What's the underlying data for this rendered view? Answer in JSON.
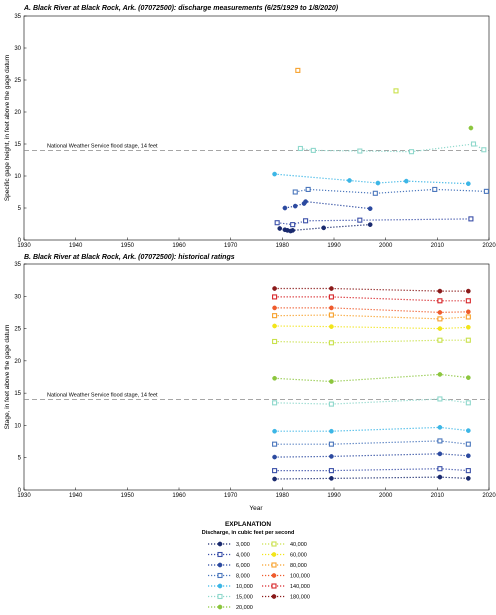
{
  "colors": {
    "3000": "#1a2a6e",
    "4000": "#3a4fa8",
    "6000": "#2c4aa0",
    "8000": "#4a76bc",
    "10000": "#3cb6e6",
    "15000": "#8fd8cc",
    "20000": "#8cc63e",
    "40000": "#c9e14b",
    "60000": "#f2e51a",
    "80000": "#f7a12c",
    "100000": "#ef5b2c",
    "140000": "#d7262a",
    "180000": "#8a1a1a"
  },
  "chart_data": [
    {
      "type": "scatter",
      "title": "A. Black River at Black Rock, Ark. (07072500): discharge measurements (6/25/1929 to 1/8/2020)",
      "xlabel": "",
      "ylabel": "Specific gage height, in feet above the gage datum",
      "xlim": [
        1930,
        2020
      ],
      "ylim": [
        0,
        35
      ],
      "xticks": [
        "1930",
        "1940",
        "1950",
        "1960",
        "1970",
        "1980",
        "1990",
        "2000",
        "2010",
        "2020"
      ],
      "yticks": [
        "0",
        "5",
        "10",
        "15",
        "20",
        "25",
        "30",
        "35"
      ],
      "reference_line": {
        "value": 14,
        "label": "National Weather Service flood stage, 14 feet"
      },
      "series": [
        {
          "key": "3000",
          "marker": "circle",
          "points": [
            [
              1979.5,
              1.8
            ],
            [
              1980.5,
              1.6
            ],
            [
              1981,
              1.5
            ],
            [
              1981.6,
              1.4
            ],
            [
              1982,
              1.5
            ],
            [
              1988,
              1.9
            ],
            [
              1997,
              2.4
            ]
          ]
        },
        {
          "key": "4000",
          "marker": "square",
          "points": [
            [
              1979,
              2.7
            ],
            [
              1982,
              2.4
            ],
            [
              1984.5,
              3.0
            ],
            [
              1995,
              3.1
            ],
            [
              2016.5,
              3.3
            ]
          ]
        },
        {
          "key": "6000",
          "marker": "circle",
          "points": [
            [
              1980.5,
              5.0
            ],
            [
              1982.5,
              5.3
            ],
            [
              1984.2,
              5.7
            ],
            [
              1984.5,
              6.0
            ],
            [
              1997,
              4.9
            ]
          ]
        },
        {
          "key": "8000",
          "marker": "square",
          "points": [
            [
              1982.5,
              7.5
            ],
            [
              1985,
              7.9
            ],
            [
              1998,
              7.3
            ],
            [
              2009.5,
              7.9
            ],
            [
              2019.5,
              7.6
            ]
          ]
        },
        {
          "key": "10000",
          "marker": "circle",
          "points": [
            [
              1978.5,
              10.3
            ],
            [
              1993,
              9.3
            ],
            [
              1998.5,
              8.9
            ],
            [
              2004,
              9.2
            ],
            [
              2016,
              8.8
            ]
          ]
        },
        {
          "key": "15000",
          "marker": "square",
          "points": [
            [
              1983.5,
              14.3
            ],
            [
              1986,
              14.0
            ],
            [
              1995,
              13.9
            ],
            [
              2005,
              13.8
            ],
            [
              2017,
              15.0
            ],
            [
              2019,
              14.1
            ]
          ]
        },
        {
          "key": "20000",
          "marker": "circle",
          "points": [
            [
              2016.5,
              17.5
            ]
          ]
        },
        {
          "key": "40000",
          "marker": "square",
          "points": [
            [
              2002,
              23.3
            ]
          ]
        },
        {
          "key": "80000",
          "marker": "square",
          "points": [
            [
              1983,
              26.5
            ]
          ]
        }
      ]
    },
    {
      "type": "line",
      "title": "B. Black River at Black Rock, Ark. (07072500): historical ratings",
      "xlabel": "Year",
      "ylabel": "Stage, in feet above the gage datum",
      "xlim": [
        1930,
        2020
      ],
      "ylim": [
        0,
        35
      ],
      "xticks": [
        "1930",
        "1940",
        "1950",
        "1960",
        "1970",
        "1980",
        "1990",
        "2000",
        "2010",
        "2020"
      ],
      "yticks": [
        "0",
        "5",
        "10",
        "15",
        "20",
        "25",
        "30",
        "35"
      ],
      "reference_line": {
        "value": 14,
        "label": "National Weather Service flood stage, 14 feet"
      },
      "x": [
        1978.5,
        1989.5,
        2010.5,
        2016
      ],
      "series": [
        {
          "key": "3000",
          "marker": "circle",
          "values": [
            1.7,
            1.8,
            2.0,
            1.8
          ]
        },
        {
          "key": "4000",
          "marker": "square",
          "values": [
            3.0,
            3.0,
            3.3,
            3.0
          ]
        },
        {
          "key": "6000",
          "marker": "circle",
          "values": [
            5.1,
            5.2,
            5.6,
            5.3
          ]
        },
        {
          "key": "8000",
          "marker": "square",
          "values": [
            7.1,
            7.1,
            7.6,
            7.1
          ]
        },
        {
          "key": "10000",
          "marker": "circle",
          "values": [
            9.1,
            9.1,
            9.7,
            9.2
          ]
        },
        {
          "key": "15000",
          "marker": "square",
          "values": [
            13.5,
            13.3,
            14.1,
            13.5
          ]
        },
        {
          "key": "20000",
          "marker": "circle",
          "values": [
            17.3,
            16.8,
            17.9,
            17.4
          ]
        },
        {
          "key": "40000",
          "marker": "square",
          "values": [
            23.0,
            22.8,
            23.2,
            23.2
          ]
        },
        {
          "key": "60000",
          "marker": "circle",
          "values": [
            25.4,
            25.3,
            25.0,
            25.2
          ]
        },
        {
          "key": "80000",
          "marker": "square",
          "values": [
            27.0,
            27.1,
            26.5,
            26.8
          ]
        },
        {
          "key": "100000",
          "marker": "circle",
          "values": [
            28.2,
            28.2,
            27.5,
            27.6
          ]
        },
        {
          "key": "140000",
          "marker": "square",
          "values": [
            29.9,
            29.9,
            29.3,
            29.3
          ]
        },
        {
          "key": "180000",
          "marker": "circle",
          "values": [
            31.2,
            31.2,
            30.8,
            30.8
          ]
        }
      ]
    }
  ],
  "legend": {
    "title": "EXPLANATION",
    "subtitle": "Discharge, in cubic feet per second",
    "items": [
      {
        "key": "3000",
        "label": "3,000",
        "marker": "circle"
      },
      {
        "key": "4000",
        "label": "4,000",
        "marker": "square"
      },
      {
        "key": "6000",
        "label": "6,000",
        "marker": "circle"
      },
      {
        "key": "8000",
        "label": "8,000",
        "marker": "square"
      },
      {
        "key": "10000",
        "label": "10,000",
        "marker": "circle"
      },
      {
        "key": "15000",
        "label": "15,000",
        "marker": "square"
      },
      {
        "key": "20000",
        "label": "20,000",
        "marker": "circle"
      },
      {
        "key": "40000",
        "label": "40,000",
        "marker": "square"
      },
      {
        "key": "60000",
        "label": "60,000",
        "marker": "circle"
      },
      {
        "key": "80000",
        "label": "80,000",
        "marker": "square"
      },
      {
        "key": "100000",
        "label": "100,000",
        "marker": "circle"
      },
      {
        "key": "140000",
        "label": "140,000",
        "marker": "square"
      },
      {
        "key": "180000",
        "label": "180,000",
        "marker": "circle"
      }
    ]
  }
}
